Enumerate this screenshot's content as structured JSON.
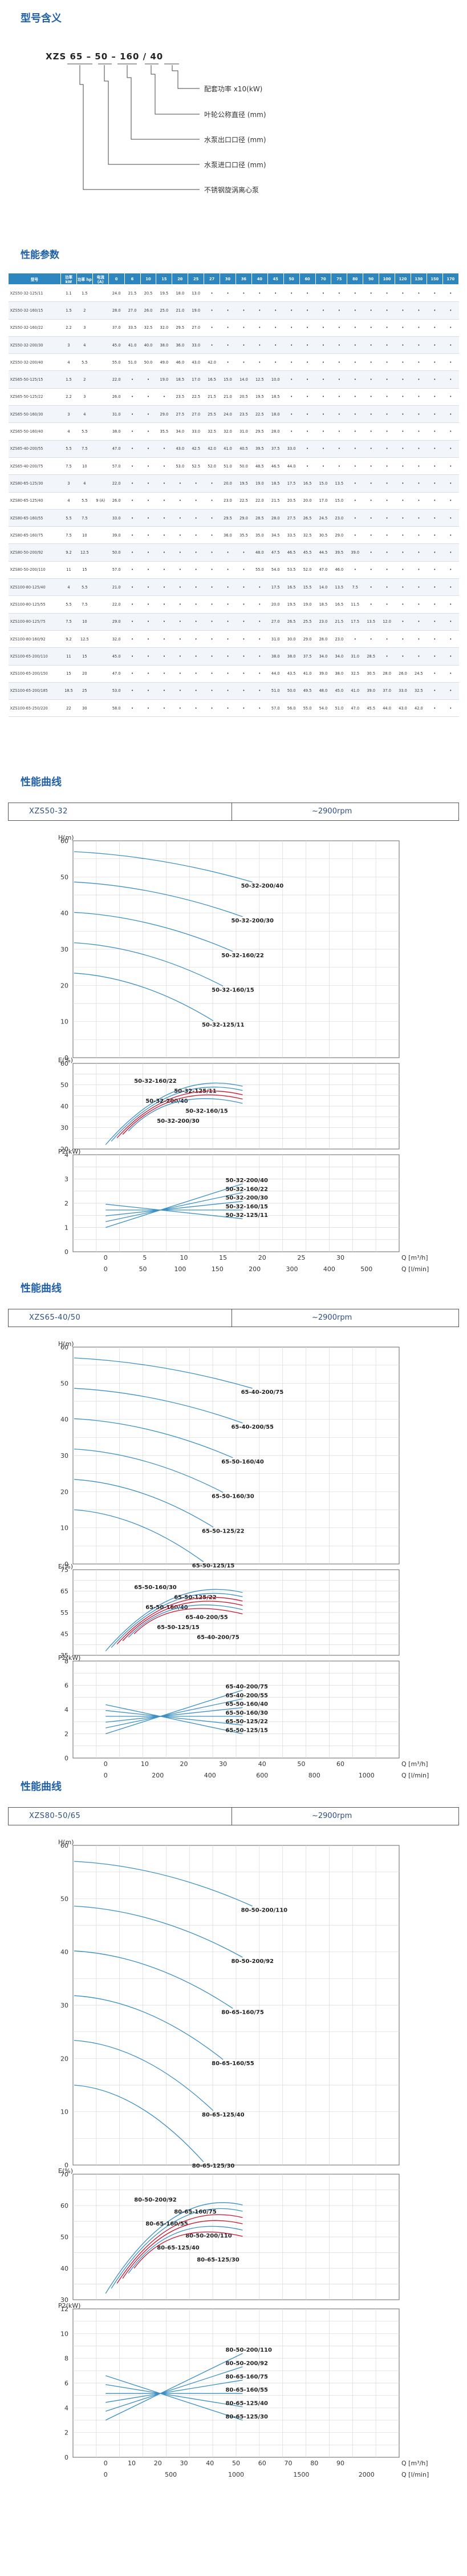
{
  "model_meaning": {
    "title": "型号含义",
    "code": "XZS  65 – 50 – 160 / 40",
    "labels": [
      "配套功率 x10(kW)",
      "叶轮公称直径 (mm)",
      "水泵出口口径 (mm)",
      "水泵进口口径 (mm)",
      "不锈钢旋涡离心泵"
    ]
  },
  "performance": {
    "title": "性能参数",
    "headers": [
      "型号",
      "功率 kW",
      "功率 hp",
      "电流 (A)",
      "0",
      "6",
      "10",
      "15",
      "20",
      "25",
      "27",
      "30",
      "36",
      "40",
      "45",
      "50",
      "60",
      "70",
      "75",
      "80",
      "90",
      "100",
      "120",
      "130",
      "150",
      "170"
    ],
    "rows": [
      [
        "XZS50-32-125/11",
        "1.1",
        "1.5",
        "",
        "24.0",
        "21.5",
        "20.5",
        "19.5",
        "18.0",
        "13.0",
        "•",
        "•",
        "•",
        "•",
        "•",
        "•",
        "•",
        "•",
        "•",
        "•",
        "•",
        "•",
        "•",
        "•",
        "•",
        "•"
      ],
      [
        "XZS50-32-160/15",
        "1.5",
        "2",
        "",
        "28.0",
        "27.0",
        "26.0",
        "25.0",
        "21.0",
        "19.0",
        "•",
        "•",
        "•",
        "•",
        "•",
        "•",
        "•",
        "•",
        "•",
        "•",
        "•",
        "•",
        "•",
        "•",
        "•",
        "•"
      ],
      [
        "XZS50-32-160/22",
        "2.2",
        "3",
        "",
        "37.0",
        "33.5",
        "32.5",
        "32.0",
        "29.5",
        "27.0",
        "•",
        "•",
        "•",
        "•",
        "•",
        "•",
        "•",
        "•",
        "•",
        "•",
        "•",
        "•",
        "•",
        "•",
        "•",
        "•"
      ],
      [
        "XZS50-32-200/30",
        "3",
        "4",
        "",
        "45.0",
        "41.0",
        "40.0",
        "38.0",
        "36.0",
        "33.0",
        "•",
        "•",
        "•",
        "•",
        "•",
        "•",
        "•",
        "•",
        "•",
        "•",
        "•",
        "•",
        "•",
        "•",
        "•",
        "•"
      ],
      [
        "XZS50-32-200/40",
        "4",
        "5.5",
        "",
        "55.0",
        "51.0",
        "50.0",
        "49.0",
        "46.0",
        "43.0",
        "42.0",
        "•",
        "•",
        "•",
        "•",
        "•",
        "•",
        "•",
        "•",
        "•",
        "•",
        "•",
        "•",
        "•",
        "•",
        "•"
      ],
      [
        "XZS65-50-125/15",
        "1.5",
        "2",
        "",
        "22.0",
        "•",
        "•",
        "19.0",
        "18.5",
        "17.0",
        "16.5",
        "15.0",
        "14.0",
        "12.5",
        "10.0",
        "•",
        "•",
        "•",
        "•",
        "•",
        "•",
        "•",
        "•",
        "•",
        "•",
        "•"
      ],
      [
        "XZS65-50-125/22",
        "2.2",
        "3",
        "",
        "26.0",
        "•",
        "•",
        "•",
        "23.5",
        "22.5",
        "21.5",
        "21.0",
        "20.5",
        "19.5",
        "18.5",
        "•",
        "•",
        "•",
        "•",
        "•",
        "•",
        "•",
        "•",
        "•",
        "•",
        "•"
      ],
      [
        "XZS65-50-160/30",
        "3",
        "4",
        "",
        "31.0",
        "•",
        "•",
        "29.0",
        "27.5",
        "27.0",
        "25.5",
        "24.0",
        "23.5",
        "22.5",
        "18.0",
        "•",
        "•",
        "•",
        "•",
        "•",
        "•",
        "•",
        "•",
        "•",
        "•",
        "•"
      ],
      [
        "XZS65-50-160/40",
        "4",
        "5.5",
        "",
        "38.0",
        "•",
        "•",
        "35.5",
        "34.0",
        "33.0",
        "32.5",
        "32.0",
        "31.0",
        "29.5",
        "28.0",
        "•",
        "•",
        "•",
        "•",
        "•",
        "•",
        "•",
        "•",
        "•",
        "•",
        "•"
      ],
      [
        "XZS65-40-200/55",
        "5.5",
        "7.5",
        "",
        "47.0",
        "•",
        "•",
        "•",
        "43.0",
        "42.5",
        "42.0",
        "41.0",
        "40.5",
        "39.5",
        "37.5",
        "33.0",
        "•",
        "•",
        "•",
        "•",
        "•",
        "•",
        "•",
        "•",
        "•",
        "•"
      ],
      [
        "XZS65-40-200/75",
        "7.5",
        "10",
        "",
        "57.0",
        "•",
        "•",
        "•",
        "53.0",
        "52.5",
        "52.0",
        "51.0",
        "50.0",
        "48.5",
        "46.5",
        "44.0",
        "•",
        "•",
        "•",
        "•",
        "•",
        "•",
        "•",
        "•",
        "•",
        "•"
      ],
      [
        "XZS80-65-125/30",
        "3",
        "4",
        "",
        "22.0",
        "•",
        "•",
        "•",
        "•",
        "•",
        "•",
        "20.0",
        "19.5",
        "19.0",
        "18.5",
        "17.5",
        "16.5",
        "15.0",
        "13.5",
        "•",
        "•",
        "•",
        "•",
        "•",
        "•",
        "•"
      ],
      [
        "XZS80-65-125/40",
        "4",
        "5.5",
        "9 (A)",
        "26.0",
        "•",
        "•",
        "•",
        "•",
        "•",
        "•",
        "23.0",
        "22.5",
        "22.0",
        "21.5",
        "20.5",
        "20.0",
        "17.0",
        "15.0",
        "•",
        "•",
        "•",
        "•",
        "•",
        "•",
        "•"
      ],
      [
        "XZS80-65-160/55",
        "5.5",
        "7.5",
        "",
        "33.0",
        "•",
        "•",
        "•",
        "•",
        "•",
        "•",
        "29.5",
        "29.0",
        "28.5",
        "28.0",
        "27.5",
        "26.5",
        "24.5",
        "23.0",
        "•",
        "•",
        "•",
        "•",
        "•",
        "•",
        "•"
      ],
      [
        "XZS80-65-160/75",
        "7.5",
        "10",
        "",
        "39.0",
        "•",
        "•",
        "•",
        "•",
        "•",
        "•",
        "36.0",
        "35.5",
        "35.0",
        "34.5",
        "33.5",
        "32.5",
        "30.5",
        "29.0",
        "•",
        "•",
        "•",
        "•",
        "•",
        "•",
        "•"
      ],
      [
        "XZS80-50-200/92",
        "9.2",
        "12.5",
        "",
        "50.0",
        "•",
        "•",
        "•",
        "•",
        "•",
        "•",
        "•",
        "•",
        "48.0",
        "47.5",
        "46.5",
        "45.5",
        "44.5",
        "39.5",
        "39.0",
        "•",
        "•",
        "•",
        "•",
        "•",
        "•"
      ],
      [
        "XZS80-50-200/110",
        "11",
        "15",
        "",
        "57.0",
        "•",
        "•",
        "•",
        "•",
        "•",
        "•",
        "•",
        "•",
        "55.0",
        "54.0",
        "53.5",
        "52.0",
        "47.0",
        "46.0",
        "•",
        "•",
        "•",
        "•",
        "•",
        "•",
        "•"
      ],
      [
        "XZS100-80-125/40",
        "4",
        "5.5",
        "",
        "21.0",
        "•",
        "•",
        "•",
        "•",
        "•",
        "•",
        "•",
        "•",
        "•",
        "17.5",
        "16.5",
        "15.5",
        "14.0",
        "13.5",
        "7.5",
        "•",
        "•",
        "•",
        "•",
        "•",
        "•"
      ],
      [
        "XZS100-80-125/55",
        "5.5",
        "7.5",
        "",
        "22.0",
        "•",
        "•",
        "•",
        "•",
        "•",
        "•",
        "•",
        "•",
        "•",
        "20.0",
        "19.5",
        "19.0",
        "18.5",
        "16.5",
        "11.5",
        "•",
        "•",
        "•",
        "•",
        "•",
        "•"
      ],
      [
        "XZS100-80-125/75",
        "7.5",
        "10",
        "",
        "29.0",
        "•",
        "•",
        "•",
        "•",
        "•",
        "•",
        "•",
        "•",
        "•",
        "27.0",
        "26.5",
        "25.5",
        "23.0",
        "21.5",
        "17.5",
        "13.5",
        "12.0",
        "•",
        "•",
        "•",
        "•"
      ],
      [
        "XZS100-80-160/92",
        "9.2",
        "12.5",
        "",
        "32.0",
        "•",
        "•",
        "•",
        "•",
        "•",
        "•",
        "•",
        "•",
        "•",
        "31.0",
        "30.0",
        "29.0",
        "28.0",
        "23.0",
        "•",
        "•",
        "•",
        "•",
        "•",
        "•",
        "•"
      ],
      [
        "XZS100-65-200/110",
        "11",
        "15",
        "",
        "45.0",
        "•",
        "•",
        "•",
        "•",
        "•",
        "•",
        "•",
        "•",
        "•",
        "38.0",
        "38.0",
        "37.5",
        "34.0",
        "34.0",
        "31.0",
        "28.5",
        "•",
        "•",
        "•",
        "•",
        "•"
      ],
      [
        "XZS100-65-200/150",
        "15",
        "20",
        "",
        "47.0",
        "•",
        "•",
        "•",
        "•",
        "•",
        "•",
        "•",
        "•",
        "•",
        "44.0",
        "43.5",
        "41.0",
        "39.0",
        "38.0",
        "32.5",
        "30.5",
        "28.0",
        "26.0",
        "24.5",
        "•",
        "•"
      ],
      [
        "XZS100-65-200/185",
        "18.5",
        "25",
        "",
        "53.0",
        "•",
        "•",
        "•",
        "•",
        "•",
        "•",
        "•",
        "•",
        "•",
        "51.0",
        "50.0",
        "49.5",
        "48.0",
        "45.0",
        "41.0",
        "39.0",
        "37.0",
        "33.0",
        "32.5",
        "•",
        "•"
      ],
      [
        "XZS100-65-250/220",
        "22",
        "30",
        "",
        "58.0",
        "•",
        "•",
        "•",
        "•",
        "•",
        "•",
        "•",
        "•",
        "•",
        "57.0",
        "56.0",
        "55.0",
        "54.0",
        "51.0",
        "47.0",
        "45.5",
        "44.0",
        "43.0",
        "42.0",
        "•",
        "•"
      ]
    ]
  },
  "curve_sets": [
    {
      "title": "性能曲线",
      "series_label": "XZS50-32",
      "speed": "~2900rpm",
      "h_axis": "H(m)",
      "e_axis": "E(%)",
      "p_axis": "P2(kW)",
      "q_axis": "Q [m³/h]",
      "q_axis2": "Q [l/min]",
      "h_labels": [
        "50-32-200/40",
        "50-32-200/30",
        "50-32-160/22",
        "50-32-160/15",
        "50-32-125/11"
      ],
      "e_labels": [
        "50-32-160/22",
        "50-32-125/11",
        "50-32-200/40",
        "50-32-160/15",
        "50-32-200/30"
      ],
      "p_labels": [
        "50-32-200/40",
        "50-32-160/22",
        "50-32-200/30",
        "50-32-160/15",
        "50-32-125/11"
      ],
      "h_ticks": [
        "60",
        "50",
        "40",
        "30",
        "20",
        "10",
        "0"
      ],
      "e_ticks": [
        "60",
        "50",
        "40",
        "30",
        "20"
      ],
      "p_ticks": [
        "4",
        "3",
        "2",
        "1",
        "0"
      ],
      "q_ticks": [
        "0",
        "5",
        "10",
        "15",
        "20",
        "25",
        "30"
      ],
      "q2_ticks": [
        "0",
        "50",
        "100",
        "150",
        "200",
        "300",
        "400",
        "500"
      ]
    },
    {
      "title": "性能曲线",
      "series_label": "XZS65-40/50",
      "speed": "~2900rpm",
      "h_axis": "H(m)",
      "e_axis": "E(%)",
      "p_axis": "P2(kW)",
      "q_axis": "Q [m³/h]",
      "q_axis2": "Q [l/min]",
      "h_labels": [
        "65-40-200/75",
        "65-40-200/55",
        "65-50-160/40",
        "65-50-160/30",
        "65-50-125/22",
        "65-50-125/15"
      ],
      "e_labels": [
        "65-50-160/30",
        "65-50-125/22",
        "65-50-160/40",
        "65-40-200/55",
        "65-50-125/15",
        "65-40-200/75"
      ],
      "p_labels": [
        "65-40-200/75",
        "65-40-200/55",
        "65-50-160/40",
        "65-50-160/30",
        "65-50-125/22",
        "65-50-125/15"
      ],
      "h_ticks": [
        "60",
        "50",
        "40",
        "30",
        "20",
        "10",
        "0"
      ],
      "e_ticks": [
        "75",
        "65",
        "55",
        "45",
        "35"
      ],
      "p_ticks": [
        "8",
        "6",
        "4",
        "2",
        "0"
      ],
      "q_ticks": [
        "0",
        "10",
        "20",
        "30",
        "40",
        "50",
        "60"
      ],
      "q2_ticks": [
        "0",
        "200",
        "400",
        "600",
        "800",
        "1000"
      ]
    },
    {
      "title": "性能曲线",
      "series_label": "XZS80-50/65",
      "speed": "~2900rpm",
      "h_axis": "H(m)",
      "e_axis": "E(%)",
      "p_axis": "P2(kW)",
      "q_axis": "Q [m³/h]",
      "q_axis2": "Q [l/min]",
      "h_labels": [
        "80-50-200/110",
        "80-50-200/92",
        "80-65-160/75",
        "80-65-160/55",
        "80-65-125/40",
        "80-65-125/30"
      ],
      "e_labels": [
        "80-50-200/92",
        "80-65-160/75",
        "80-65-160/55",
        "80-50-200/110",
        "80-65-125/40",
        "80-65-125/30"
      ],
      "p_labels": [
        "80-50-200/110",
        "80-50-200/92",
        "80-65-160/75",
        "80-65-160/55",
        "80-65-125/40",
        "80-65-125/30"
      ],
      "h_ticks": [
        "60",
        "50",
        "40",
        "30",
        "20",
        "10",
        "0"
      ],
      "e_ticks": [
        "70",
        "60",
        "50",
        "40",
        "30"
      ],
      "p_ticks": [
        "12",
        "10",
        "8",
        "6",
        "4",
        "2",
        "0"
      ],
      "q_ticks": [
        "0",
        "10",
        "20",
        "30",
        "40",
        "50",
        "60",
        "70",
        "80",
        "90"
      ],
      "q2_ticks": [
        "0",
        "500",
        "1000",
        "1500",
        "2000"
      ]
    }
  ]
}
